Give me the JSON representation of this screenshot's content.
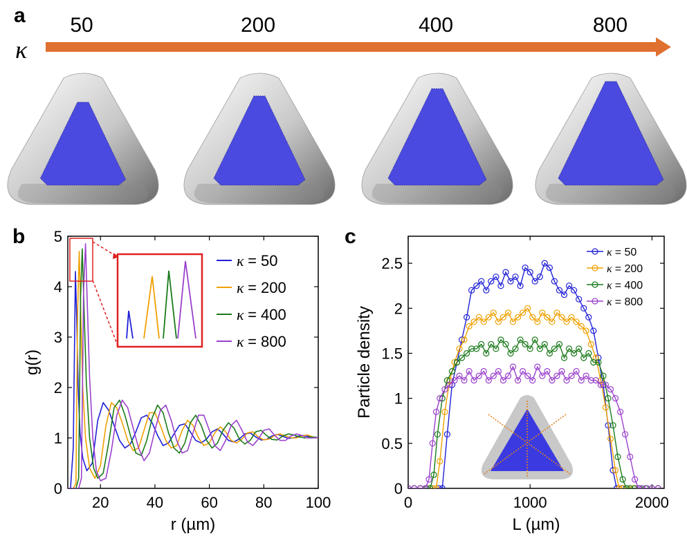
{
  "panels": {
    "a": {
      "letter": "a",
      "kappa_symbol": "κ",
      "arrow_color": "#e07030",
      "labels": [
        "50",
        "200",
        "400",
        "800"
      ],
      "particle_color": "#4a4ae0"
    },
    "b": {
      "letter": "b",
      "inset_color": "#e02020"
    },
    "c": {
      "letter": "c"
    }
  },
  "chart_data": [
    {
      "type": "line",
      "panel": "b",
      "xlabel": "r (µm)",
      "ylabel": "g(r)",
      "xlim": [
        8,
        100
      ],
      "ylim": [
        0,
        5
      ],
      "xticks": [
        20,
        40,
        60,
        80,
        100
      ],
      "yticks": [
        0,
        1,
        2,
        3,
        4,
        5
      ],
      "grid": false,
      "legend_position": "top-right",
      "legend_symbol": "κ",
      "series": [
        {
          "name": "= 50",
          "color": "#1f1fd6",
          "x": [
            8,
            9,
            10,
            10.8,
            11.3,
            11.8,
            12.5,
            13.5,
            15,
            17,
            19,
            21,
            23,
            25,
            27,
            29,
            31,
            33,
            35,
            37,
            39,
            41,
            43,
            45,
            47,
            49,
            51,
            53,
            55,
            57,
            59,
            61,
            63,
            65,
            67,
            69,
            71,
            73,
            75,
            77,
            79,
            81,
            83,
            85,
            87,
            89,
            91,
            93,
            95,
            97,
            100
          ],
          "y": [
            0,
            0,
            0.8,
            4.3,
            3.3,
            2.0,
            1.1,
            0.6,
            0.35,
            0.5,
            1.35,
            1.7,
            1.55,
            1.25,
            0.95,
            0.8,
            0.88,
            1.12,
            1.4,
            1.45,
            1.3,
            1.05,
            0.85,
            0.9,
            1.08,
            1.25,
            1.28,
            1.12,
            0.95,
            0.9,
            0.98,
            1.12,
            1.18,
            1.08,
            0.95,
            0.92,
            0.98,
            1.08,
            1.1,
            1.02,
            0.96,
            0.97,
            1.04,
            1.07,
            1.03,
            0.99,
            1.0,
            1.04,
            1.05,
            1.02,
            1.0
          ]
        },
        {
          "name": "= 200",
          "color": "#f0a000",
          "x": [
            8,
            10,
            11,
            11.6,
            12.2,
            12.8,
            13.5,
            14.5,
            16,
            18,
            20,
            22,
            24,
            26,
            28,
            30,
            32,
            34,
            36,
            38,
            40,
            42,
            44,
            46,
            48,
            50,
            52,
            54,
            56,
            58,
            60,
            62,
            64,
            66,
            68,
            70,
            72,
            74,
            76,
            78,
            80,
            82,
            84,
            86,
            88,
            90,
            92,
            94,
            96,
            98,
            100
          ],
          "y": [
            0,
            0,
            0.1,
            3.5,
            4.7,
            3.4,
            2.0,
            1.0,
            0.4,
            0.2,
            0.45,
            1.25,
            1.7,
            1.6,
            1.3,
            0.95,
            0.75,
            0.8,
            1.15,
            1.5,
            1.5,
            1.25,
            0.95,
            0.8,
            0.85,
            1.15,
            1.35,
            1.25,
            1.0,
            0.85,
            0.9,
            1.1,
            1.22,
            1.12,
            0.95,
            0.9,
            0.98,
            1.1,
            1.12,
            1.02,
            0.96,
            0.98,
            1.05,
            1.08,
            1.04,
            1.0,
            1.0,
            1.04,
            1.06,
            1.02,
            1.0
          ]
        },
        {
          "name": "= 400",
          "color": "#1a7a1a",
          "x": [
            8,
            11,
            12,
            12.7,
            13.3,
            14,
            14.8,
            16,
            17.5,
            19,
            21,
            23,
            25,
            27,
            29,
            31,
            33,
            35,
            37,
            39,
            41,
            43,
            45,
            47,
            49,
            51,
            53,
            55,
            57,
            59,
            61,
            63,
            65,
            67,
            69,
            71,
            73,
            75,
            77,
            79,
            81,
            83,
            85,
            87,
            89,
            91,
            93,
            95,
            97,
            100
          ],
          "y": [
            0,
            0,
            0.2,
            3.8,
            4.75,
            3.5,
            2.1,
            1.0,
            0.4,
            0.2,
            0.3,
            0.9,
            1.6,
            1.75,
            1.45,
            1.05,
            0.7,
            0.65,
            0.95,
            1.4,
            1.65,
            1.5,
            1.1,
            0.8,
            0.7,
            0.9,
            1.3,
            1.45,
            1.25,
            0.95,
            0.8,
            0.9,
            1.15,
            1.3,
            1.2,
            0.98,
            0.88,
            0.95,
            1.12,
            1.15,
            1.05,
            0.97,
            0.96,
            1.04,
            1.08,
            1.06,
            1.02,
            1.0,
            1.02,
            1.01
          ]
        },
        {
          "name": "= 800",
          "color": "#9a40cc",
          "x": [
            8,
            12,
            13,
            13.8,
            14.5,
            15.2,
            16,
            17.2,
            18.5,
            20,
            22,
            24,
            26,
            28,
            30,
            32,
            34,
            36,
            38,
            40,
            42,
            44,
            46,
            48,
            50,
            52,
            54,
            56,
            58,
            60,
            62,
            64,
            66,
            68,
            70,
            72,
            74,
            76,
            78,
            80,
            82,
            84,
            86,
            88,
            90,
            92,
            94,
            96,
            98,
            100
          ],
          "y": [
            0,
            0,
            0.2,
            3.9,
            4.85,
            3.6,
            2.2,
            1.0,
            0.35,
            0.15,
            0.2,
            0.75,
            1.45,
            1.75,
            1.6,
            1.2,
            0.8,
            0.55,
            0.7,
            1.15,
            1.55,
            1.65,
            1.35,
            0.95,
            0.7,
            0.75,
            1.1,
            1.45,
            1.45,
            1.15,
            0.85,
            0.75,
            0.95,
            1.25,
            1.35,
            1.15,
            0.92,
            0.85,
            0.98,
            1.15,
            1.18,
            1.05,
            0.95,
            0.95,
            1.04,
            1.08,
            1.05,
            1.0,
            1.0,
            1.01
          ]
        }
      ]
    },
    {
      "type": "line",
      "panel": "c",
      "xlabel": "L (µm)",
      "ylabel": "Particle density",
      "xlim": [
        0,
        2100
      ],
      "ylim": [
        0,
        2.8
      ],
      "xticks": [
        0,
        1000,
        2000
      ],
      "yticks": [
        0,
        0.5,
        1,
        1.5,
        2,
        2.5
      ],
      "ytick_labels": [
        "0",
        "0.5",
        "1",
        "1.5",
        "2",
        "2.5"
      ],
      "grid": false,
      "legend_position": "top-right",
      "legend_symbol": "κ",
      "markers": "open-circle",
      "series": [
        {
          "name": "= 50",
          "color": "#1f1fd6",
          "x": [
            0,
            50,
            100,
            150,
            200,
            250,
            280,
            320,
            360,
            400,
            440,
            480,
            520,
            560,
            600,
            640,
            680,
            720,
            760,
            800,
            840,
            880,
            920,
            960,
            1000,
            1040,
            1080,
            1120,
            1160,
            1200,
            1240,
            1280,
            1320,
            1360,
            1400,
            1440,
            1480,
            1520,
            1560,
            1600,
            1640,
            1680,
            1710,
            1750,
            1800,
            1850,
            1900,
            1950,
            2000,
            2050
          ],
          "y": [
            0,
            0,
            0,
            0,
            0,
            0,
            0,
            0.6,
            1.15,
            1.4,
            1.65,
            1.9,
            2.2,
            2.25,
            2.3,
            2.2,
            2.3,
            2.35,
            2.25,
            2.4,
            2.3,
            2.35,
            2.25,
            2.45,
            2.4,
            2.3,
            2.35,
            2.5,
            2.45,
            2.3,
            2.2,
            2.15,
            2.25,
            2.2,
            2.1,
            2.0,
            1.9,
            1.75,
            1.45,
            1.15,
            0.7,
            0.2,
            0,
            0,
            0,
            0,
            0,
            0,
            0,
            0
          ]
        },
        {
          "name": "= 200",
          "color": "#f0a000",
          "x": [
            0,
            50,
            100,
            150,
            200,
            230,
            260,
            300,
            340,
            380,
            420,
            460,
            500,
            540,
            580,
            620,
            660,
            700,
            740,
            780,
            820,
            860,
            900,
            940,
            980,
            1020,
            1060,
            1100,
            1140,
            1180,
            1220,
            1260,
            1300,
            1340,
            1380,
            1420,
            1460,
            1500,
            1540,
            1580,
            1620,
            1660,
            1700,
            1730,
            1760,
            1800,
            1850,
            1900,
            1950,
            2000,
            2050
          ],
          "y": [
            0,
            0,
            0,
            0,
            0,
            0,
            0.3,
            0.85,
            1.2,
            1.4,
            1.55,
            1.65,
            1.8,
            1.85,
            1.9,
            1.85,
            1.9,
            1.95,
            1.85,
            1.9,
            1.95,
            1.85,
            1.9,
            1.95,
            2.0,
            1.9,
            1.85,
            1.95,
            1.9,
            1.85,
            1.95,
            1.9,
            1.85,
            1.9,
            1.85,
            1.8,
            1.75,
            1.6,
            1.45,
            1.2,
            0.9,
            0.55,
            0.2,
            0,
            0,
            0,
            0,
            0,
            0,
            0,
            0
          ]
        },
        {
          "name": "= 400",
          "color": "#1a7a1a",
          "x": [
            0,
            50,
            100,
            150,
            180,
            210,
            240,
            280,
            320,
            360,
            400,
            440,
            480,
            520,
            560,
            600,
            640,
            680,
            720,
            760,
            800,
            840,
            880,
            920,
            960,
            1000,
            1040,
            1080,
            1120,
            1160,
            1200,
            1240,
            1280,
            1320,
            1360,
            1400,
            1440,
            1480,
            1520,
            1560,
            1600,
            1640,
            1680,
            1720,
            1760,
            1790,
            1820,
            1860,
            1900,
            1950,
            2000,
            2050
          ],
          "y": [
            0,
            0,
            0,
            0,
            0,
            0.15,
            0.6,
            1.0,
            1.2,
            1.3,
            1.4,
            1.45,
            1.5,
            1.55,
            1.55,
            1.6,
            1.5,
            1.6,
            1.55,
            1.65,
            1.6,
            1.5,
            1.55,
            1.65,
            1.6,
            1.55,
            1.65,
            1.55,
            1.6,
            1.5,
            1.55,
            1.6,
            1.45,
            1.55,
            1.5,
            1.55,
            1.45,
            1.5,
            1.4,
            1.4,
            1.25,
            1.0,
            0.7,
            0.35,
            0.1,
            0,
            0,
            0,
            0,
            0,
            0,
            0
          ]
        },
        {
          "name": "= 800",
          "color": "#9a40cc",
          "x": [
            0,
            50,
            100,
            140,
            170,
            200,
            230,
            260,
            300,
            340,
            380,
            420,
            460,
            500,
            540,
            580,
            620,
            660,
            700,
            740,
            780,
            820,
            860,
            900,
            940,
            980,
            1020,
            1060,
            1100,
            1140,
            1180,
            1220,
            1260,
            1300,
            1340,
            1380,
            1420,
            1460,
            1500,
            1540,
            1580,
            1620,
            1660,
            1700,
            1740,
            1780,
            1820,
            1860,
            1890,
            1920,
            1960,
            2000,
            2050
          ],
          "y": [
            0,
            0,
            0,
            0,
            0.1,
            0.5,
            0.85,
            1.0,
            1.1,
            1.15,
            1.2,
            1.25,
            1.2,
            1.3,
            1.2,
            1.25,
            1.3,
            1.2,
            1.25,
            1.3,
            1.2,
            1.25,
            1.35,
            1.2,
            1.3,
            1.25,
            1.2,
            1.35,
            1.25,
            1.3,
            1.2,
            1.25,
            1.3,
            1.2,
            1.25,
            1.3,
            1.2,
            1.25,
            1.2,
            1.2,
            1.15,
            1.15,
            1.1,
            1.0,
            0.85,
            0.6,
            0.35,
            0.1,
            0,
            0,
            0,
            0,
            0
          ]
        }
      ]
    }
  ]
}
